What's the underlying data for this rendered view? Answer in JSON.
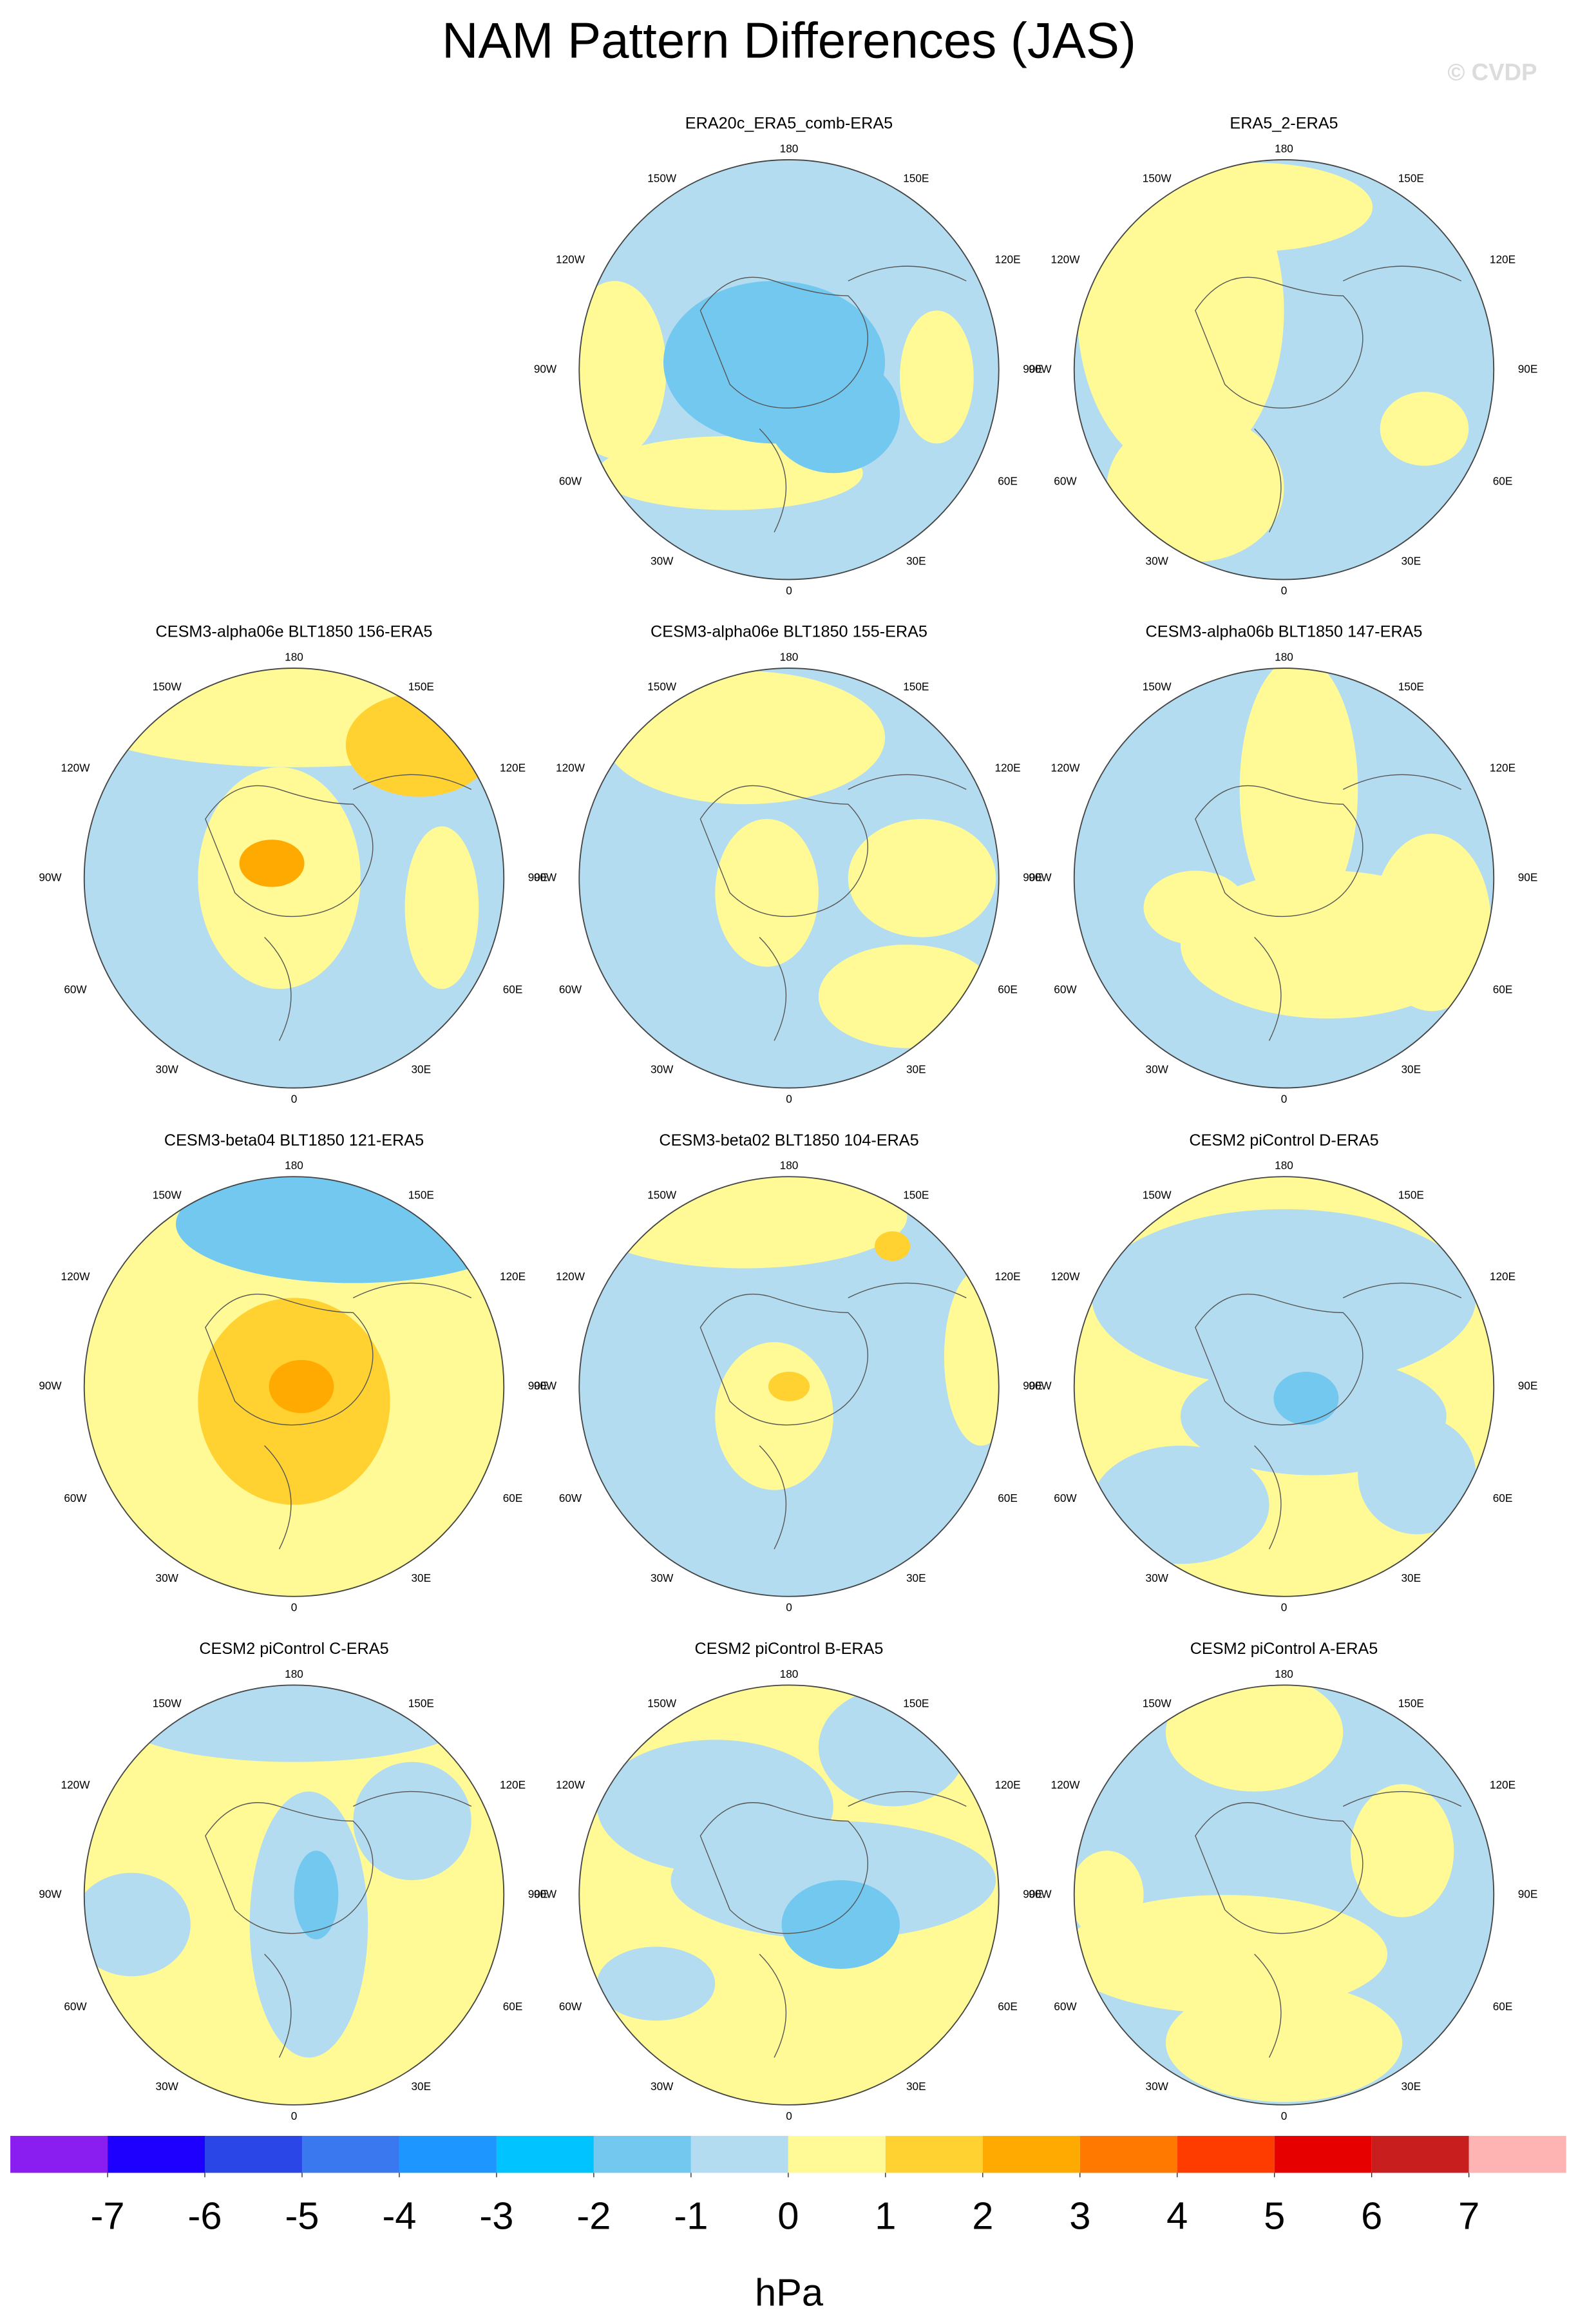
{
  "title": "NAM Pattern Differences (JAS)",
  "watermark": "© CVDP",
  "panels": [
    {
      "title": "ERA20c_ERA5_comb-ERA5"
    },
    {
      "title": "ERA5_2-ERA5"
    },
    {
      "title": "CESM3-alpha06e BLT1850 156-ERA5"
    },
    {
      "title": "CESM3-alpha06e BLT1850 155-ERA5"
    },
    {
      "title": "CESM3-alpha06b BLT1850 147-ERA5"
    },
    {
      "title": "CESM3-beta04 BLT1850 121-ERA5"
    },
    {
      "title": "CESM3-beta02 BLT1850 104-ERA5"
    },
    {
      "title": "CESM2 piControl D-ERA5"
    },
    {
      "title": "CESM2 piControl C-ERA5"
    },
    {
      "title": "CESM2 piControl B-ERA5"
    },
    {
      "title": "CESM2 piControl A-ERA5"
    }
  ],
  "lon_labels": [
    "180",
    "150W",
    "150E",
    "120W",
    "120E",
    "90W",
    "90E",
    "60W",
    "60E",
    "30W",
    "30E",
    "0"
  ],
  "colorbar": {
    "ticks": [
      -7,
      -6,
      -5,
      -4,
      -3,
      -2,
      -1,
      0,
      1,
      2,
      3,
      4,
      5,
      6,
      7
    ],
    "colors": [
      "#8a1ef0",
      "#1e00ff",
      "#2a46e6",
      "#3a78f0",
      "#1e96ff",
      "#00c3ff",
      "#73c8f0",
      "#b4dcf0",
      "#fffa96",
      "#ffd232",
      "#ffaa00",
      "#ff7800",
      "#ff3c00",
      "#e60000",
      "#c81e1e",
      "#ffb4b4"
    ],
    "unit": "hPa"
  }
}
